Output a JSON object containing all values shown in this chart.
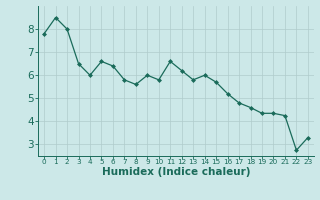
{
  "x": [
    0,
    1,
    2,
    3,
    4,
    5,
    6,
    7,
    8,
    9,
    10,
    11,
    12,
    13,
    14,
    15,
    16,
    17,
    18,
    19,
    20,
    21,
    22,
    23
  ],
  "y": [
    7.8,
    8.5,
    8.0,
    6.5,
    6.0,
    6.6,
    6.4,
    5.8,
    5.6,
    6.0,
    5.8,
    6.6,
    6.2,
    5.8,
    6.0,
    5.7,
    5.2,
    4.8,
    4.6,
    4.35,
    4.35,
    4.25,
    2.75,
    3.3
  ],
  "line_color": "#1a6b5a",
  "marker": "D",
  "marker_size": 2.0,
  "bg_color": "#cce8e8",
  "grid_color": "#b0cccc",
  "xlabel": "Humidex (Indice chaleur)",
  "ylim": [
    2.5,
    9.0
  ],
  "xlim": [
    -0.5,
    23.5
  ],
  "yticks": [
    3,
    4,
    5,
    6,
    7,
    8
  ],
  "xticks": [
    0,
    1,
    2,
    3,
    4,
    5,
    6,
    7,
    8,
    9,
    10,
    11,
    12,
    13,
    14,
    15,
    16,
    17,
    18,
    19,
    20,
    21,
    22,
    23
  ],
  "tick_color": "#1a6b5a",
  "label_color": "#1a6b5a",
  "xlabel_fontsize": 7.5,
  "ytick_fontsize": 7.5,
  "xtick_fontsize": 5.2
}
